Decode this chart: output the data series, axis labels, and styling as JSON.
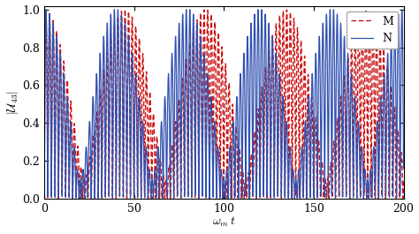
{
  "t_min": 0,
  "t_max": 200,
  "y_min": 0,
  "y_max": 1.05,
  "omega_N": 1.57,
  "omega_M": 1.5,
  "gamma_N": 0.004,
  "gamma_M": 0.003,
  "omega_env_N": 0.045,
  "omega_env_M": 0.038,
  "phi_N": 0.0,
  "phi_M": 0.3,
  "env_phi_N": 0.0,
  "env_phi_M": 0.5,
  "amp_env_N": 0.35,
  "amp_env_M": 0.4,
  "color_N": "#3050b0",
  "color_M": "#cc1111",
  "label_N": "N",
  "label_M": "M",
  "xlabel": "$\\omega_{m}\\, t$",
  "ylabel": "$|\\mathcal{U}_{43}|$",
  "yticks": [
    0.0,
    0.2,
    0.4,
    0.6,
    0.8,
    1.0
  ],
  "xticks": [
    0,
    50,
    100,
    150,
    200
  ],
  "n_points": 8000,
  "figsize": [
    4.74,
    2.65
  ],
  "dpi": 100,
  "legend_loc": "upper right",
  "lw_N": 0.9,
  "lw_M": 1.0,
  "bg_color": "#ffffff"
}
